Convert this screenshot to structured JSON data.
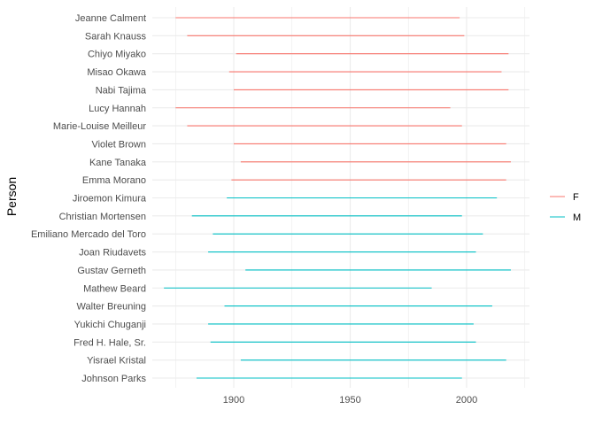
{
  "chart_data": {
    "type": "line",
    "xlabel": "",
    "ylabel": "Person",
    "xlim": [
      1865,
      2027
    ],
    "x_ticks": [
      1900,
      1950,
      2000
    ],
    "grid": true,
    "legend_position": "right",
    "legend": [
      {
        "label": "F",
        "color": "#F8766D"
      },
      {
        "label": "M",
        "color": "#00BFC4"
      }
    ],
    "series": [
      {
        "name": "Jeanne Calment",
        "group": "F",
        "x": [
          1875,
          1997
        ]
      },
      {
        "name": "Sarah Knauss",
        "group": "F",
        "x": [
          1880,
          1999
        ]
      },
      {
        "name": "Chiyo Miyako",
        "group": "F",
        "x": [
          1901,
          2018
        ]
      },
      {
        "name": "Misao Okawa",
        "group": "F",
        "x": [
          1898,
          2015
        ]
      },
      {
        "name": "Nabi Tajima",
        "group": "F",
        "x": [
          1900,
          2018
        ]
      },
      {
        "name": "Lucy Hannah",
        "group": "F",
        "x": [
          1875,
          1993
        ]
      },
      {
        "name": "Marie-Louise Meilleur",
        "group": "F",
        "x": [
          1880,
          1998
        ]
      },
      {
        "name": "Violet Brown",
        "group": "F",
        "x": [
          1900,
          2017
        ]
      },
      {
        "name": "Kane Tanaka",
        "group": "F",
        "x": [
          1903,
          2019
        ]
      },
      {
        "name": "Emma Morano",
        "group": "F",
        "x": [
          1899,
          2017
        ]
      },
      {
        "name": "Jiroemon Kimura",
        "group": "M",
        "x": [
          1897,
          2013
        ]
      },
      {
        "name": "Christian Mortensen",
        "group": "M",
        "x": [
          1882,
          1998
        ]
      },
      {
        "name": "Emiliano Mercado del Toro",
        "group": "M",
        "x": [
          1891,
          2007
        ]
      },
      {
        "name": "Joan Riudavets",
        "group": "M",
        "x": [
          1889,
          2004
        ]
      },
      {
        "name": "Gustav Gerneth",
        "group": "M",
        "x": [
          1905,
          2019
        ]
      },
      {
        "name": "Mathew Beard",
        "group": "M",
        "x": [
          1870,
          1985
        ]
      },
      {
        "name": "Walter Breuning",
        "group": "M",
        "x": [
          1896,
          2011
        ]
      },
      {
        "name": "Yukichi Chuganji",
        "group": "M",
        "x": [
          1889,
          2003
        ]
      },
      {
        "name": "Fred H. Hale, Sr.",
        "group": "M",
        "x": [
          1890,
          2004
        ]
      },
      {
        "name": "Yisrael Kristal",
        "group": "M",
        "x": [
          1903,
          2017
        ]
      },
      {
        "name": "Johnson Parks",
        "group": "M",
        "x": [
          1884,
          1998
        ]
      }
    ]
  }
}
